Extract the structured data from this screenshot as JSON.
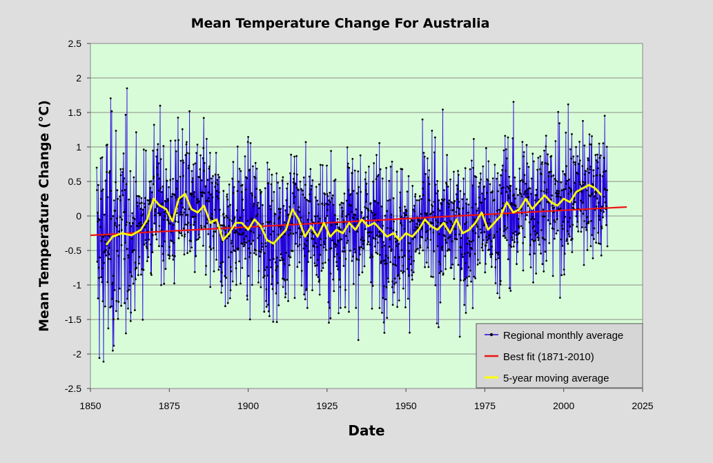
{
  "chart_data": {
    "type": "line",
    "title": "Mean Temperature Change For Australia",
    "xlabel": "Date",
    "ylabel": "Mean  Temperature  Change  (°C)",
    "xlim": [
      1850,
      2025
    ],
    "ylim": [
      -2.5,
      2.5
    ],
    "x_ticks": [
      "1850",
      "1875",
      "1900",
      "1925",
      "1950",
      "1975",
      "2000",
      "2025"
    ],
    "y_ticks": [
      "2.5",
      "2",
      "1.5",
      "1",
      "0.5",
      "0",
      "-0.5",
      "-1",
      "-1.5",
      "-2",
      "-2.5"
    ],
    "grid": "horizontal",
    "legend_position": "bottom-right",
    "background_color": "#d8fcd8",
    "series": [
      {
        "name": "Regional monthly average",
        "color": "#2200dd",
        "marker_color": "#000000",
        "frequency": "monthly",
        "x_range": [
          1852,
          2013.9
        ],
        "note": "dense monthly anomalies, typical spread about ±0.9 °C, extremes near +2.5 and -2.5"
      },
      {
        "name": "Best fit (1871-2010)",
        "color": "#ee1111",
        "x": [
          1850,
          2020
        ],
        "y": [
          -0.28,
          0.13
        ]
      },
      {
        "name": "5-year moving average",
        "color": "#ffff00",
        "x": [
          1855,
          1857,
          1860,
          1863,
          1866,
          1868,
          1870,
          1872,
          1874,
          1876,
          1878,
          1880,
          1882,
          1884,
          1886,
          1888,
          1890,
          1892,
          1894,
          1896,
          1898,
          1900,
          1902,
          1904,
          1906,
          1908,
          1910,
          1912,
          1914,
          1916,
          1918,
          1920,
          1922,
          1924,
          1926,
          1928,
          1930,
          1932,
          1934,
          1936,
          1938,
          1940,
          1942,
          1944,
          1946,
          1948,
          1950,
          1952,
          1954,
          1956,
          1958,
          1960,
          1962,
          1964,
          1966,
          1968,
          1970,
          1972,
          1974,
          1976,
          1978,
          1980,
          1982,
          1984,
          1986,
          1988,
          1990,
          1992,
          1994,
          1996,
          1998,
          2000,
          2002,
          2004,
          2006,
          2008,
          2010,
          2012
        ],
        "y": [
          -0.42,
          -0.3,
          -0.25,
          -0.28,
          -0.2,
          -0.05,
          0.25,
          0.15,
          0.1,
          -0.08,
          0.25,
          0.32,
          0.1,
          0.05,
          0.15,
          -0.1,
          -0.05,
          -0.35,
          -0.25,
          -0.1,
          -0.1,
          -0.2,
          -0.05,
          -0.15,
          -0.35,
          -0.4,
          -0.3,
          -0.2,
          0.1,
          -0.05,
          -0.3,
          -0.15,
          -0.3,
          -0.1,
          -0.3,
          -0.2,
          -0.25,
          -0.1,
          -0.2,
          -0.05,
          -0.15,
          -0.1,
          -0.2,
          -0.3,
          -0.25,
          -0.35,
          -0.25,
          -0.3,
          -0.2,
          -0.05,
          -0.15,
          -0.2,
          -0.1,
          -0.25,
          -0.05,
          -0.25,
          -0.2,
          -0.1,
          0.05,
          -0.2,
          -0.1,
          0.0,
          0.2,
          0.05,
          0.1,
          0.25,
          0.1,
          0.2,
          0.3,
          0.2,
          0.15,
          0.25,
          0.2,
          0.35,
          0.4,
          0.45,
          0.4,
          0.3
        ]
      }
    ]
  }
}
